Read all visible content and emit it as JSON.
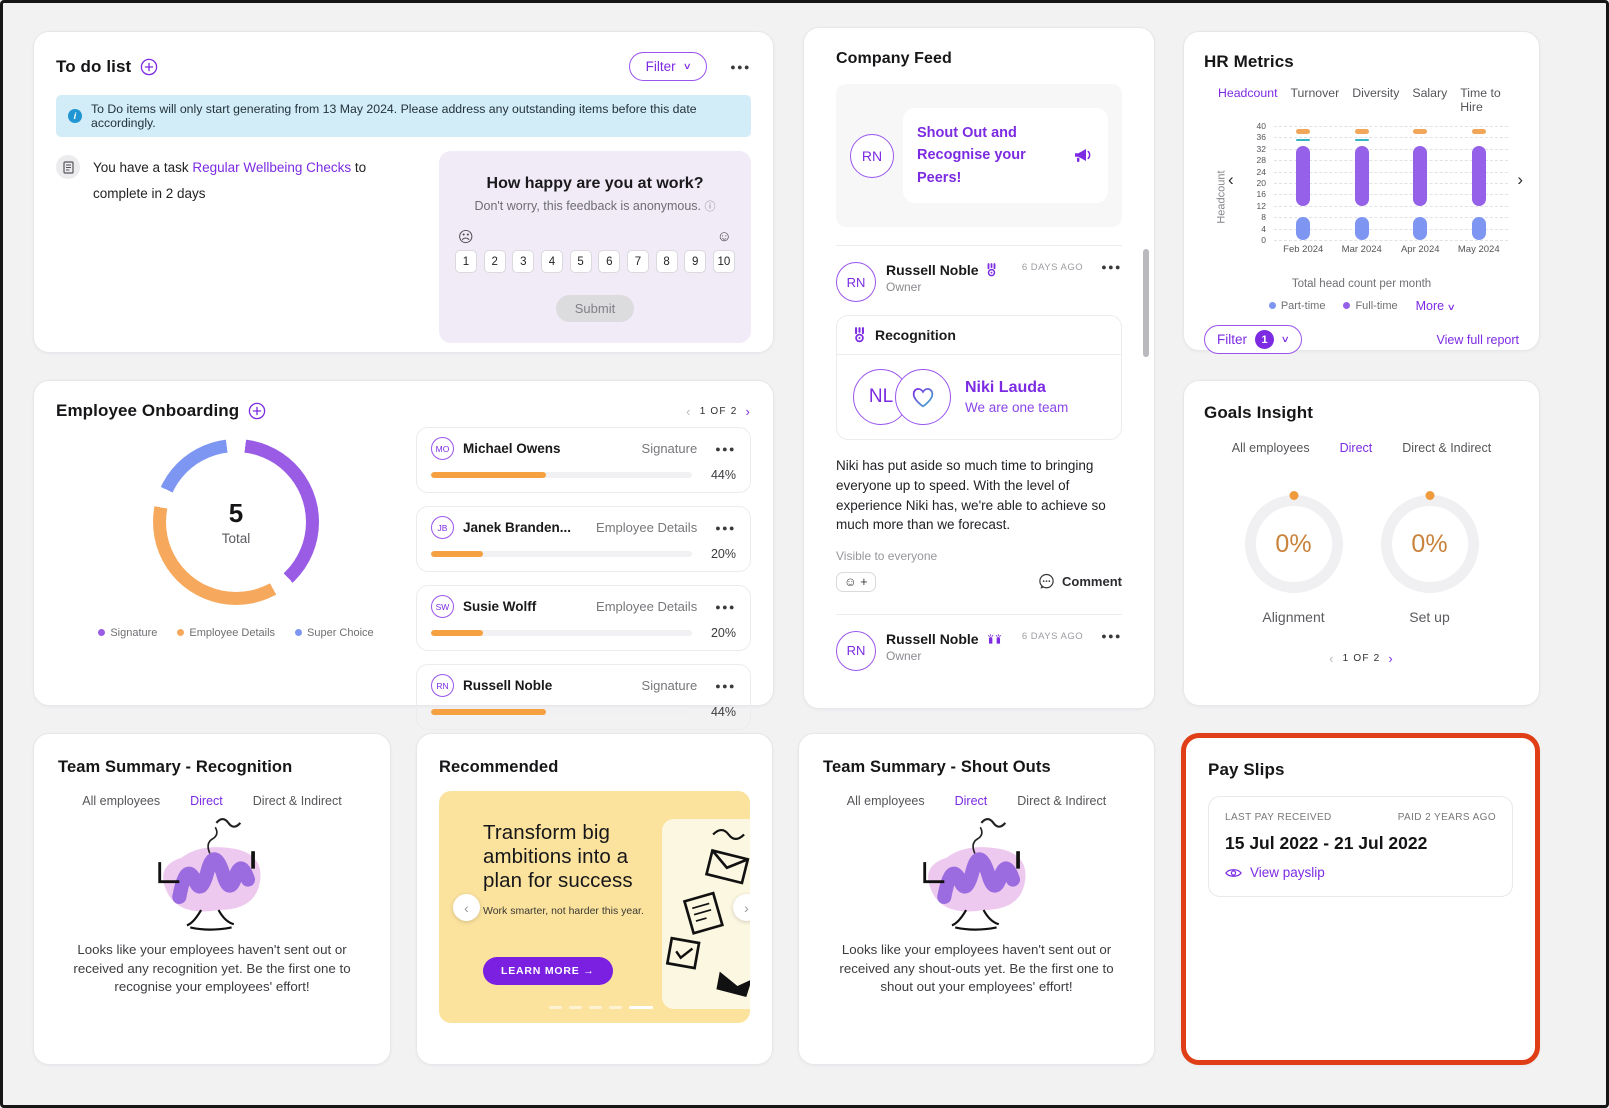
{
  "colors": {
    "accent_purple": "#7c2be2",
    "highlight_border": "#df3e17",
    "progress_orange": "#f5a142",
    "info_banner_bg": "#d2edf8",
    "promo_yellow": "#fbe39e"
  },
  "todo": {
    "title": "To do list",
    "filter_label": "Filter",
    "more_icon": "...",
    "banner_text": "To Do items will only start generating from 13 May 2024. Please address any outstanding items before this date accordingly.",
    "task": {
      "pre": "You have a task ",
      "link": "Regular Wellbeing Checks",
      "post": " to complete in 2 days"
    },
    "happiness": {
      "question": "How happy are you at work?",
      "subtitle": "Don't worry, this feedback is anonymous.",
      "scale": [
        "1",
        "2",
        "3",
        "4",
        "5",
        "6",
        "7",
        "8",
        "9",
        "10"
      ],
      "submit_label": "Submit"
    }
  },
  "company_feed": {
    "title": "Company Feed",
    "promo": {
      "avatar_initials": "RN",
      "text": "Shout Out and Recognise your Peers!"
    },
    "post1": {
      "initials": "RN",
      "name": "Russell Noble",
      "role": "Owner",
      "time": "6 DAYS AGO",
      "recognition_label": "Recognition",
      "recipient_initials": "NL",
      "recipient_name": "Niki Lauda",
      "recipient_badge": "We are one team",
      "body": "Niki has put aside so much time to bringing everyone up to speed. With the level of experience Niki has, we're able to achieve so much more than we forecast.",
      "visibility": "Visible to everyone",
      "reaction_label": "☺ +",
      "comment_label": "Comment"
    },
    "post2": {
      "initials": "RN",
      "name": "Russell Noble",
      "role": "Owner",
      "time": "6 DAYS AGO"
    }
  },
  "hr_metrics": {
    "title": "HR Metrics",
    "tabs": [
      "Headcount",
      "Turnover",
      "Diversity",
      "Salary",
      "Time to Hire"
    ],
    "active_tab": "Headcount",
    "chart_data": {
      "type": "bar",
      "ylabel": "Headcount",
      "xlabel": "Total head count per month",
      "categories": [
        "Feb 2024",
        "Mar 2024",
        "Apr 2024",
        "May 2024"
      ],
      "ylim": [
        0,
        40
      ],
      "yticks": [
        0,
        4,
        8,
        12,
        16,
        20,
        24,
        28,
        32,
        36,
        40
      ],
      "series": [
        {
          "name": "Part-time",
          "color": "#7e96f1",
          "style": "bar",
          "ranges": [
            [
              0,
              8
            ],
            [
              0,
              8
            ],
            [
              0,
              8
            ],
            [
              0,
              8
            ]
          ]
        },
        {
          "name": "Full-time",
          "color": "#9561e8",
          "style": "bar",
          "ranges": [
            [
              12,
              33
            ],
            [
              12,
              33
            ],
            [
              12,
              33
            ],
            [
              12,
              33
            ]
          ]
        },
        {
          "name": "",
          "color": "#f2a65a",
          "style": "marker",
          "size": 5,
          "values": [
            38,
            38,
            38,
            38
          ]
        },
        {
          "name": "",
          "color": "#35b5c4",
          "style": "marker",
          "size": 2,
          "values": [
            35,
            35,
            null,
            null
          ]
        }
      ],
      "legend": [
        "Part-time",
        "Full-time"
      ],
      "legend_position": "bottom",
      "grid": true
    },
    "more_label": "More",
    "filter_label": "Filter",
    "filter_count": "1",
    "view_report_label": "View full report"
  },
  "employee_onboarding": {
    "title": "Employee Onboarding",
    "pagination": "1 OF 2",
    "chart_data": {
      "type": "pie",
      "total": "5",
      "total_label": "Total",
      "slices": [
        {
          "label": "Signature",
          "value": 2,
          "color": "#9a5ce4"
        },
        {
          "label": "Employee Details",
          "value": 2,
          "color": "#f6a95c"
        },
        {
          "label": "Super Choice",
          "value": 1,
          "color": "#7d96f1"
        }
      ]
    },
    "employees": [
      {
        "initials": "MO",
        "name": "Michael Owens",
        "stage": "Signature",
        "progress": 44,
        "progress_label": "44%"
      },
      {
        "initials": "JB",
        "name": "Janek Branden...",
        "stage": "Employee Details",
        "progress": 20,
        "progress_label": "20%"
      },
      {
        "initials": "SW",
        "name": "Susie Wolff",
        "stage": "Employee Details",
        "progress": 20,
        "progress_label": "20%"
      },
      {
        "initials": "RN",
        "name": "Russell Noble",
        "stage": "Signature",
        "progress": 44,
        "progress_label": "44%"
      }
    ]
  },
  "goals_insight": {
    "title": "Goals Insight",
    "tabs": [
      "All employees",
      "Direct",
      "Direct & Indirect"
    ],
    "active_tab": "Direct",
    "rings": [
      {
        "value": "0%",
        "label": "Alignment"
      },
      {
        "value": "0%",
        "label": "Set up"
      }
    ],
    "pagination": "1 OF 2"
  },
  "team_recognition": {
    "title": "Team Summary - Recognition",
    "tabs": [
      "All employees",
      "Direct",
      "Direct & Indirect"
    ],
    "active_tab": "Direct",
    "empty_text": "Looks like your employees haven't sent out or received any recognition yet. Be the first one to recognise your employees' effort!"
  },
  "recommended": {
    "title": "Recommended",
    "banner": {
      "heading": "Transform big ambitions into a plan for success",
      "subtext": "Work smarter, not harder this year.",
      "cta": "LEARN MORE →"
    }
  },
  "team_shoutouts": {
    "title": "Team Summary - Shout Outs",
    "tabs": [
      "All employees",
      "Direct",
      "Direct & Indirect"
    ],
    "active_tab": "Direct",
    "empty_text": "Looks like your employees haven't sent out or received any shout-outs yet. Be the first one to shout out your employees' effort!"
  },
  "pay_slips": {
    "title": "Pay Slips",
    "last_pay_label": "LAST PAY RECEIVED",
    "paid_ago_label": "PAID 2 YEARS AGO",
    "period": "15 Jul 2022 - 21 Jul 2022",
    "view_label": "View payslip"
  }
}
